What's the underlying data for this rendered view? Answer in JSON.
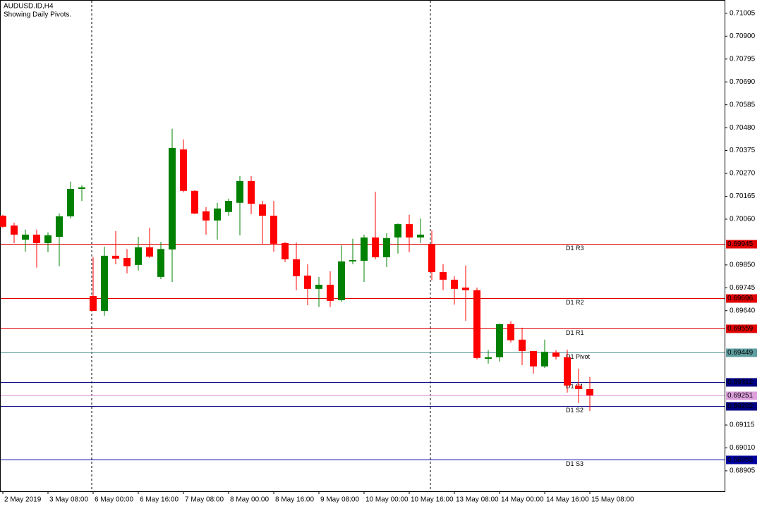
{
  "chart_data": {
    "type": "candlestick",
    "title": "AUDUSD.ID,H4",
    "subtitle": "Showing Daily Pivots.",
    "categories": [
      "2 May 2019",
      null,
      null,
      null,
      "3 May 08:00",
      null,
      null,
      null,
      "6 May 00:00",
      null,
      null,
      null,
      "6 May 16:00",
      null,
      null,
      null,
      "7 May 08:00",
      null,
      null,
      null,
      "8 May 00:00",
      null,
      null,
      null,
      "8 May 16:00",
      null,
      null,
      null,
      "9 May 08:00",
      null,
      null,
      null,
      "10 May 00:00",
      null,
      null,
      null,
      "10 May 16:00",
      null,
      null,
      null,
      "13 May 08:00",
      null,
      null,
      null,
      "14 May 00:00",
      null,
      null,
      null,
      "14 May 16:00",
      null,
      null,
      null,
      "15 May 08:00"
    ],
    "open": [
      0.70076,
      0.70031,
      0.69966,
      0.69989,
      0.6995,
      0.69979,
      0.70073,
      0.70199,
      0.69707,
      0.69639,
      0.69892,
      0.69882,
      0.6985,
      0.69931,
      0.69795,
      0.69921,
      0.7038,
      0.7019,
      0.70096,
      0.70054,
      0.70093,
      0.70135,
      0.70235,
      0.70128,
      0.70076,
      0.6995,
      0.69876,
      0.69801,
      0.6974,
      0.69759,
      0.69688,
      0.69866,
      0.69869,
      0.69976,
      0.69885,
      0.69976,
      0.70037,
      0.69976,
      0.69944,
      0.69817,
      0.69782,
      0.69746,
      0.69734,
      0.69419,
      0.69426,
      0.69578,
      0.69507,
      0.69455,
      0.69384,
      0.69448,
      0.69426,
      0.69296,
      0.6928
    ],
    "high": [
      0.7008,
      0.70044,
      0.70012,
      0.70012,
      0.69999,
      0.70086,
      0.70232,
      0.70215,
      0.69885,
      0.69934,
      0.70005,
      0.69923,
      0.69979,
      0.70021,
      0.69956,
      0.70475,
      0.70426,
      0.70193,
      0.70115,
      0.70135,
      0.70154,
      0.70258,
      0.70258,
      0.70144,
      0.70144,
      0.69956,
      0.69953,
      0.69853,
      0.69795,
      0.69821,
      0.6994,
      0.6997,
      0.69989,
      0.70186,
      0.69995,
      0.70041,
      0.7008,
      0.70063,
      0.70008,
      0.69853,
      0.69798,
      0.69847,
      0.69746,
      0.69459,
      0.69581,
      0.69591,
      0.69562,
      0.69455,
      0.69507,
      0.69458,
      0.69461,
      0.69374,
      0.69335
    ],
    "low": [
      0.7002,
      0.6995,
      0.69911,
      0.69838,
      0.69908,
      0.69844,
      0.70063,
      0.70144,
      0.69639,
      0.69617,
      0.69853,
      0.69811,
      0.69824,
      0.69882,
      0.69785,
      0.69772,
      0.70183,
      0.70083,
      0.69989,
      0.69966,
      0.70076,
      0.69986,
      0.70083,
      0.69944,
      0.69911,
      0.69863,
      0.69734,
      0.69665,
      0.69657,
      0.69657,
      0.69681,
      0.69853,
      0.69772,
      0.69876,
      0.6984,
      0.69902,
      0.69908,
      0.6995,
      0.69779,
      0.69734,
      0.69668,
      0.69594,
      0.69416,
      0.69397,
      0.69406,
      0.69494,
      0.6939,
      0.69351,
      0.69377,
      0.69416,
      0.69264,
      0.69216,
      0.6918
    ],
    "close": [
      0.70025,
      0.69989,
      0.69989,
      0.6995,
      0.69986,
      0.70073,
      0.70199,
      0.70206,
      0.69639,
      0.69892,
      0.69879,
      0.69844,
      0.69931,
      0.69888,
      0.69923,
      0.70387,
      0.7019,
      0.70086,
      0.70054,
      0.70109,
      0.70144,
      0.70235,
      0.70131,
      0.70076,
      0.69947,
      0.69876,
      0.69798,
      0.6974,
      0.69759,
      0.69685,
      0.69866,
      0.69872,
      0.69976,
      0.69885,
      0.69973,
      0.70037,
      0.69976,
      0.69989,
      0.69817,
      0.69782,
      0.6974,
      0.69734,
      0.69423,
      0.69426,
      0.69578,
      0.69504,
      0.69455,
      0.69384,
      0.69451,
      0.69429,
      0.69296,
      0.6928,
      0.69251
    ],
    "up_color": "#008000",
    "down_color": "#ff0000",
    "ylim": [
      0.68811,
      0.71066
    ],
    "yticks": [
      0.71005,
      {
        "value": 0.709,
        "label": "0.70900"
      },
      0.70795,
      {
        "value": 0.7069,
        "label": "0.70690"
      },
      0.70585,
      {
        "value": 0.7048,
        "label": "0.70480"
      },
      0.70375,
      {
        "value": 0.7027,
        "label": "0.70270"
      },
      0.70165,
      {
        "value": 0.7006,
        "label": "0.70060"
      },
      {
        "value": 0.6985,
        "label": "0.69850"
      },
      0.69745,
      {
        "value": 0.6964,
        "label": "0.69640"
      },
      0.69115,
      {
        "value": 0.6901,
        "label": "0.69010"
      },
      0.68905
    ],
    "levels": [
      {
        "name": "D1 R3",
        "value": 0.69945,
        "color": "#e00000"
      },
      {
        "name": "D1 R2",
        "value": 0.69696,
        "color": "#e00000"
      },
      {
        "name": "D1 R1",
        "value": 0.69559,
        "color": "#e00000"
      },
      {
        "name": "D1 Pivot",
        "value": 0.69449,
        "color": "#5f9ea0"
      },
      {
        "name": "D1 S1",
        "value": 0.69312,
        "color": "#000080"
      },
      {
        "name": "D1 S2",
        "value": 0.69202,
        "color": "#000080"
      },
      {
        "name": "D1 S3",
        "value": 0.68955,
        "color": "#0000a0"
      }
    ],
    "current_price": {
      "value": 0.69251,
      "color": "#dda0dd"
    }
  }
}
